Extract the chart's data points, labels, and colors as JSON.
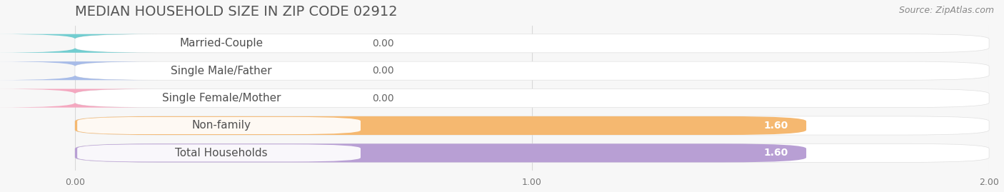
{
  "title": "MEDIAN HOUSEHOLD SIZE IN ZIP CODE 02912",
  "source": "Source: ZipAtlas.com",
  "categories": [
    "Married-Couple",
    "Single Male/Father",
    "Single Female/Mother",
    "Non-family",
    "Total Households"
  ],
  "values": [
    0.0,
    0.0,
    0.0,
    1.6,
    1.6
  ],
  "bar_colors": [
    "#72cdd0",
    "#a8bce8",
    "#f4a8c0",
    "#f5b870",
    "#b89fd4"
  ],
  "value_text_colors": [
    "#666666",
    "#666666",
    "#666666",
    "#ffffff",
    "#ffffff"
  ],
  "xlim": [
    0,
    2.0
  ],
  "xticks": [
    0.0,
    1.0,
    2.0
  ],
  "xtick_labels": [
    "0.00",
    "1.00",
    "2.00"
  ],
  "title_fontsize": 14,
  "source_fontsize": 9,
  "label_fontsize": 11,
  "value_fontsize": 10,
  "background_color": "#f7f7f7",
  "grid_color": "#d8d8d8",
  "bar_height": 0.68,
  "bar_gap": 0.32
}
